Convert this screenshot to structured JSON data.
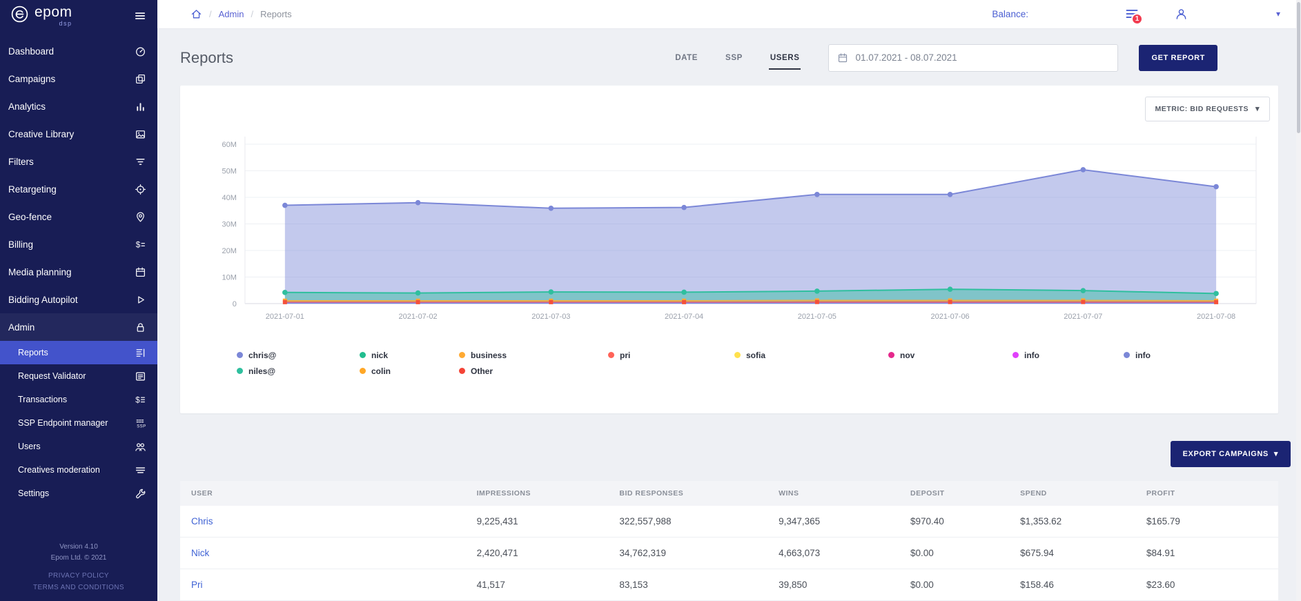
{
  "icons": {
    "caret_down": "▾"
  },
  "sidebar": {
    "logo": {
      "name": "epom",
      "sub": "dsp"
    },
    "items": [
      {
        "label": "Dashboard",
        "icon": "gauge-icon"
      },
      {
        "label": "Campaigns",
        "icon": "copy-icon"
      },
      {
        "label": "Analytics",
        "icon": "bar-chart-icon"
      },
      {
        "label": "Creative Library",
        "icon": "image-icon"
      },
      {
        "label": "Filters",
        "icon": "filter-icon"
      },
      {
        "label": "Retargeting",
        "icon": "target-icon"
      },
      {
        "label": "Geo-fence",
        "icon": "pin-icon"
      },
      {
        "label": "Billing",
        "icon": "dollar-lines-icon"
      },
      {
        "label": "Media planning",
        "icon": "calendar-icon"
      },
      {
        "label": "Bidding Autopilot",
        "icon": "play-icon"
      },
      {
        "label": "Admin",
        "icon": "lock-icon",
        "expanded": true,
        "children": [
          {
            "label": "Reports",
            "icon": "report-lines-icon",
            "active": true
          },
          {
            "label": "Request Validator",
            "icon": "validator-icon"
          },
          {
            "label": "Transactions",
            "icon": "transactions-icon"
          },
          {
            "label": "SSP Endpoint manager",
            "icon": "ssp-icon"
          },
          {
            "label": "Users",
            "icon": "users-icon"
          },
          {
            "label": "Creatives moderation",
            "icon": "moderation-icon"
          },
          {
            "label": "Settings",
            "icon": "wrench-icon"
          }
        ]
      }
    ],
    "footer": {
      "version": "Version 4.10",
      "copyright": "Epom Ltd. © 2021",
      "links": [
        "PRIVACY POLICY",
        "TERMS AND CONDITIONS"
      ]
    }
  },
  "header": {
    "breadcrumb": {
      "separator": "/",
      "items": [
        "Admin",
        "Reports"
      ]
    },
    "balance_label": "Balance:",
    "notification_count": "1"
  },
  "toolbar": {
    "title": "Reports",
    "tabs": [
      {
        "label": "DATE",
        "active": false
      },
      {
        "label": "SSP",
        "active": false
      },
      {
        "label": "USERS",
        "active": true
      }
    ],
    "date_range": "01.07.2021 - 08.07.2021",
    "get_report_label": "GET REPORT"
  },
  "chart_card": {
    "metric_label": "METRIC: BID REQUESTS"
  },
  "chart_data": {
    "type": "area",
    "title": "",
    "metric": "BID REQUESTS",
    "values_unit": "millions",
    "ylim": [
      0,
      65000000
    ],
    "y_tick_labels": [
      "0",
      "10M",
      "20M",
      "30M",
      "40M",
      "50M",
      "60M"
    ],
    "x": [
      "2021-07-01",
      "2021-07-02",
      "2021-07-03",
      "2021-07-04",
      "2021-07-05",
      "2021-07-06",
      "2021-07-07",
      "2021-07-08"
    ],
    "series": [
      {
        "name": "chris@",
        "color": "#7b87d7",
        "type": "area",
        "marker": "circle",
        "values": [
          37,
          38,
          35.9,
          36.2,
          41.1,
          41.1,
          50.4,
          44
        ]
      },
      {
        "name": "niles@",
        "color": "#2fbf9e",
        "type": "area",
        "marker": "circle",
        "values": [
          4.2,
          4.0,
          4.4,
          4.3,
          4.7,
          5.4,
          4.9,
          3.8
        ]
      },
      {
        "name": "business",
        "color": "#ffaa33",
        "type": "line",
        "marker": "square",
        "values": [
          1.1,
          1.1,
          1.1,
          1.1,
          1.2,
          1.2,
          1.2,
          1.1
        ]
      },
      {
        "name": "Other",
        "color": "#f4503a",
        "type": "line",
        "marker": "square",
        "values": [
          0.55,
          0.55,
          0.55,
          0.55,
          0.6,
          0.6,
          0.6,
          0.55
        ]
      },
      {
        "name": "pri",
        "color": "#ff6358",
        "type": "line",
        "marker": "none",
        "values": [
          0.4,
          0.4,
          0.4,
          0.4,
          0.4,
          0.4,
          0.4,
          0.4
        ]
      },
      {
        "name": "colin",
        "color": "#ffa726",
        "type": "line",
        "marker": "none",
        "values": [
          0.35,
          0.35,
          0.35,
          0.35,
          0.35,
          0.35,
          0.35,
          0.35
        ]
      },
      {
        "name": "sofia",
        "color": "#ffe14d",
        "type": "line",
        "marker": "none",
        "values": [
          0.3,
          0.3,
          0.3,
          0.3,
          0.3,
          0.3,
          0.3,
          0.3
        ]
      },
      {
        "name": "nov",
        "color": "#e5288c",
        "type": "line",
        "marker": "none",
        "values": [
          0.25,
          0.25,
          0.25,
          0.25,
          0.25,
          0.25,
          0.25,
          0.25
        ]
      },
      {
        "name": "info",
        "color": "#e040fb",
        "type": "line",
        "marker": "none",
        "values": [
          0.2,
          0.2,
          0.2,
          0.2,
          0.2,
          0.2,
          0.2,
          0.2
        ]
      },
      {
        "name": "info",
        "color": "#7b87d7",
        "type": "line",
        "marker": "none",
        "values": [
          0.15,
          0.15,
          0.15,
          0.15,
          0.15,
          0.15,
          0.15,
          0.15
        ]
      }
    ],
    "legend": [
      {
        "label": "chris@",
        "color": "#7b87d7"
      },
      {
        "label": "nick",
        "color": "#21bd8f"
      },
      {
        "label": "business",
        "color": "#ffaa33"
      },
      {
        "label": "pri",
        "color": "#ff6358"
      },
      {
        "label": "sofia",
        "color": "#ffe14d"
      },
      {
        "label": "nov",
        "color": "#e5288c"
      },
      {
        "label": "info",
        "color": "#e040fb"
      },
      {
        "label": "info",
        "color": "#7b87d7"
      },
      {
        "label": "niles@",
        "color": "#2fbf9e"
      },
      {
        "label": "colin",
        "color": "#ffa726"
      },
      {
        "label": "Other",
        "color": "#f44336"
      }
    ]
  },
  "export_button_label": "EXPORT CAMPAIGNS",
  "table": {
    "columns": [
      "USER",
      "IMPRESSIONS",
      "BID RESPONSES",
      "WINS",
      "DEPOSIT",
      "SPEND",
      "PROFIT"
    ],
    "rows": [
      {
        "user": "Chris",
        "impressions": "9,225,431",
        "bid_responses": "322,557,988",
        "wins": "9,347,365",
        "deposit": "$970.40",
        "spend": "$1,353.62",
        "profit": "$165.79"
      },
      {
        "user": "Nick",
        "impressions": "2,420,471",
        "bid_responses": "34,762,319",
        "wins": "4,663,073",
        "deposit": "$0.00",
        "spend": "$675.94",
        "profit": "$84.91"
      },
      {
        "user": "Pri",
        "impressions": "41,517",
        "bid_responses": "83,153",
        "wins": "39,850",
        "deposit": "$0.00",
        "spend": "$158.46",
        "profit": "$23.60"
      }
    ]
  }
}
